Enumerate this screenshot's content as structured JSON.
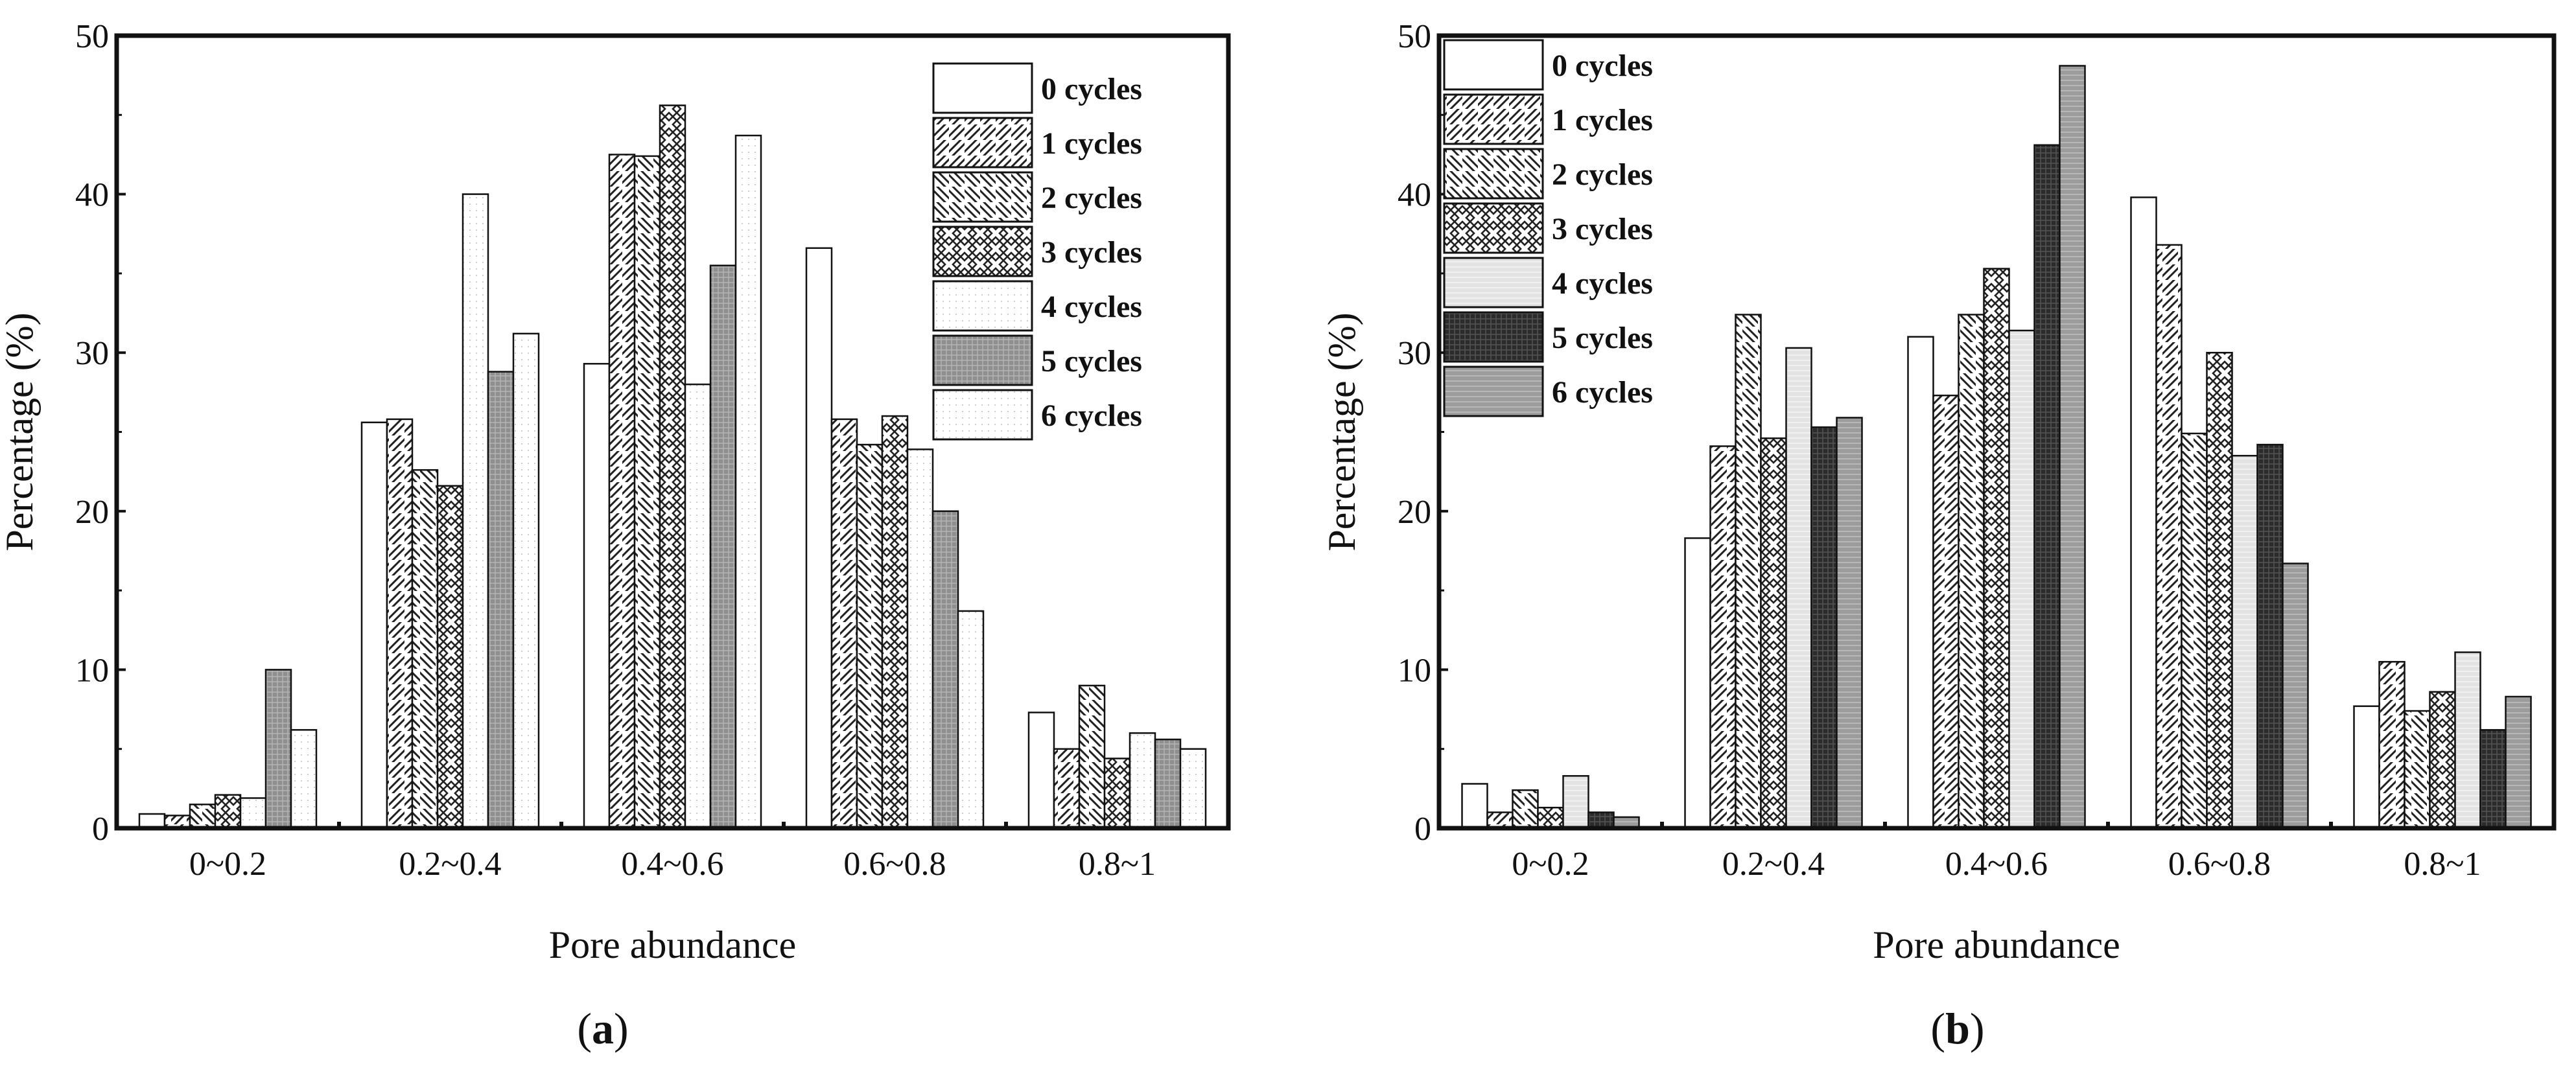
{
  "chart_data": [
    {
      "type": "bar",
      "panel_label": "a",
      "title": "",
      "xlabel": "Pore abundance",
      "ylabel": "Percentage (%)",
      "ylim": [
        0,
        50
      ],
      "yticks": [
        0,
        10,
        20,
        30,
        40,
        50
      ],
      "categories": [
        "0~0.2",
        "0.2~0.4",
        "0.4~0.6",
        "0.6~0.8",
        "0.8~1"
      ],
      "legend_position": "top-right",
      "series": [
        {
          "name": "0 cycles",
          "values": [
            0.9,
            25.6,
            29.3,
            36.6,
            7.3
          ]
        },
        {
          "name": "1 cycles",
          "values": [
            0.8,
            25.8,
            42.5,
            25.8,
            5.0
          ]
        },
        {
          "name": "2 cycles",
          "values": [
            1.5,
            22.6,
            42.4,
            24.2,
            9.0
          ]
        },
        {
          "name": "3 cycles",
          "values": [
            2.1,
            21.6,
            45.6,
            26.0,
            4.4
          ]
        },
        {
          "name": "4 cycles",
          "values": [
            1.9,
            40.0,
            28.0,
            23.9,
            6.0
          ]
        },
        {
          "name": "5 cycles",
          "values": [
            10.0,
            28.8,
            35.5,
            20.0,
            5.6
          ]
        },
        {
          "name": "6 cycles",
          "values": [
            6.2,
            31.2,
            43.7,
            13.7,
            5.0
          ]
        }
      ]
    },
    {
      "type": "bar",
      "panel_label": "b",
      "title": "",
      "xlabel": "Pore abundance",
      "ylabel": "Percentage (%)",
      "ylim": [
        0,
        50
      ],
      "yticks": [
        0,
        10,
        20,
        30,
        40,
        50
      ],
      "categories": [
        "0~0.2",
        "0.2~0.4",
        "0.4~0.6",
        "0.6~0.8",
        "0.8~1"
      ],
      "legend_position": "top-left",
      "series": [
        {
          "name": "0 cycles",
          "values": [
            2.8,
            18.3,
            31.0,
            39.8,
            7.7
          ]
        },
        {
          "name": "1 cycles",
          "values": [
            1.0,
            24.1,
            27.3,
            36.8,
            10.5
          ]
        },
        {
          "name": "2 cycles",
          "values": [
            2.4,
            32.4,
            32.4,
            24.9,
            7.4
          ]
        },
        {
          "name": "3 cycles",
          "values": [
            1.3,
            24.6,
            35.3,
            30.0,
            8.6
          ]
        },
        {
          "name": "4 cycles",
          "values": [
            3.3,
            30.3,
            31.4,
            23.5,
            11.1
          ]
        },
        {
          "name": "5 cycles",
          "values": [
            1.0,
            25.3,
            43.1,
            24.2,
            6.2
          ]
        },
        {
          "name": "6 cycles",
          "values": [
            0.7,
            25.9,
            48.1,
            16.7,
            8.3
          ]
        }
      ]
    }
  ],
  "styles": {
    "a": [
      "white",
      "diag-right",
      "diag-left",
      "crosshatch",
      "dots",
      "gray-grid",
      "dots"
    ],
    "b": [
      "white",
      "diag-right",
      "diag-left",
      "crosshatch",
      "light-gray-lines",
      "dark-grid",
      "mid-gray-lines"
    ]
  }
}
